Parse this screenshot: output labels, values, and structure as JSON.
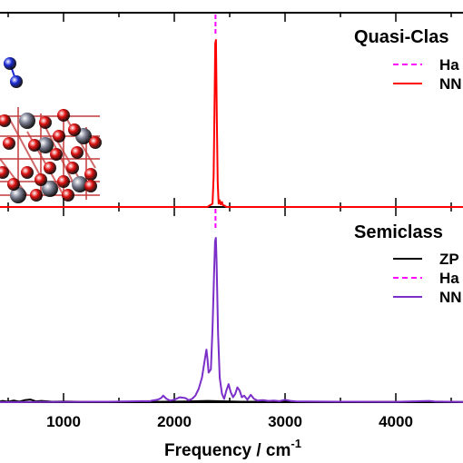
{
  "chart_data": {
    "type": "line",
    "xlabel": "Frequency / cm",
    "xlabel_superscript": "-1",
    "xlim": [
      400,
      4700
    ],
    "x_ticks": [
      1000,
      2000,
      3000,
      4000
    ],
    "x_tick_labels": [
      "1000",
      "2000",
      "3000",
      "4000"
    ],
    "panels": [
      {
        "title": "Quasi-Clas",
        "legend": [
          {
            "label": "Ha",
            "color": "#ff00ff",
            "dash": true
          },
          {
            "label": "NN",
            "color": "#ff0000",
            "dash": false
          }
        ],
        "harmonic_x": 2372,
        "series": [
          {
            "name": "NN",
            "color": "#ff0000",
            "x": [
              400,
              2300,
              2320,
              2335,
              2345,
              2355,
              2362,
              2370,
              2376,
              2384,
              2392,
              2400,
              2410,
              2420,
              2430,
              2440,
              2455,
              2470,
              4700
            ],
            "y": [
              0,
              0,
              0.01,
              0.015,
              0.02,
              0.18,
              0.55,
              0.98,
              1.0,
              0.55,
              0.15,
              0.02,
              0.04,
              0.015,
              0.03,
              0.01,
              0.008,
              0,
              0
            ]
          }
        ]
      },
      {
        "title": "Semiclass",
        "legend": [
          {
            "label": "ZP",
            "color": "#000000",
            "dash": false
          },
          {
            "label": "Ha",
            "color": "#ff00ff",
            "dash": true
          },
          {
            "label": "NN",
            "color": "#7b2fc8",
            "dash": false
          }
        ],
        "harmonic_x": 2372,
        "series": [
          {
            "name": "ZP",
            "color": "#000000",
            "x": [
              400,
              450,
              500,
              550,
              600,
              650,
              700,
              750,
              800,
              900,
              1000,
              1200,
              1500,
              1800,
              2100,
              2300,
              2600,
              3000,
              3500,
              4000,
              4700
            ],
            "y": [
              0,
              0.008,
              0.003,
              0.01,
              0.004,
              0.012,
              0.016,
              0.005,
              0.008,
              0.003,
              0.004,
              0.002,
              0.003,
              0.002,
              0.004,
              0.008,
              0.003,
              0.003,
              0.002,
              0.002,
              0.001
            ]
          },
          {
            "name": "NN",
            "color": "#7b2fc8",
            "x": [
              400,
              1000,
              1400,
              1600,
              1700,
              1780,
              1800,
              1850,
              1880,
              1900,
              1930,
              1960,
              2000,
              2050,
              2100,
              2130,
              2160,
              2190,
              2220,
              2250,
              2280,
              2290,
              2300,
              2310,
              2330,
              2345,
              2360,
              2368,
              2375,
              2382,
              2395,
              2410,
              2430,
              2450,
              2470,
              2490,
              2510,
              2530,
              2550,
              2570,
              2590,
              2610,
              2630,
              2660,
              2690,
              2720,
              2750,
              2800,
              2850,
              2900,
              2950,
              3000,
              3050,
              3100,
              3200,
              3500,
              4000,
              4300,
              4350,
              4700
            ],
            "y": [
              0,
              0.002,
              0.003,
              0.005,
              0.006,
              0.006,
              0.01,
              0.015,
              0.025,
              0.04,
              0.02,
              0.01,
              0.015,
              0.03,
              0.025,
              0.012,
              0.02,
              0.04,
              0.08,
              0.15,
              0.28,
              0.32,
              0.26,
              0.18,
              0.2,
              0.45,
              0.8,
              0.98,
              1.0,
              0.85,
              0.42,
              0.15,
              0.05,
              0.02,
              0.07,
              0.11,
              0.06,
              0.03,
              0.05,
              0.09,
              0.07,
              0.03,
              0.04,
              0.015,
              0.045,
              0.02,
              0.01,
              0.012,
              0.008,
              0.01,
              0.006,
              0.015,
              0.008,
              0.005,
              0.004,
              0.003,
              0.002,
              0.008,
              0.004,
              0
            ]
          }
        ]
      }
    ]
  },
  "inset": {
    "description_icon": "molecule-on-surface-icon",
    "colors": {
      "n2": "#1b2bd6",
      "oxygen": "#e01010",
      "metal": "#7f8396"
    }
  }
}
